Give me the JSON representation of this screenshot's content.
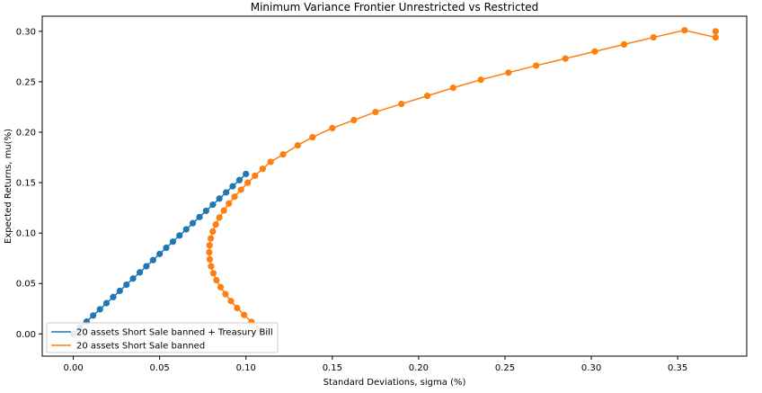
{
  "chart_data": {
    "type": "line",
    "title": "Minimum Variance Frontier Unrestricted vs Restricted",
    "xlabel": "Standard Deviations, sigma (%)",
    "ylabel": "Expected Returns, mu(%)",
    "xlim": [
      -0.018,
      0.39
    ],
    "ylim": [
      -0.022,
      0.315
    ],
    "xticks": [
      "0.00",
      "0.05",
      "0.10",
      "0.15",
      "0.20",
      "0.25",
      "0.30",
      "0.35"
    ],
    "yticks": [
      "0.00",
      "0.05",
      "0.10",
      "0.15",
      "0.20",
      "0.25",
      "0.30"
    ],
    "grid": false,
    "legend": "bottom-left",
    "colors": {
      "series0": "#1f77b4",
      "series1": "#ff7f0e"
    },
    "series": [
      {
        "name": "20 assets Short Sale banned + Treasury Bill",
        "color": "#1f77b4",
        "x": [
          0.0,
          0.0038,
          0.0077,
          0.0115,
          0.0154,
          0.0192,
          0.0231,
          0.0269,
          0.0308,
          0.0346,
          0.0385,
          0.0423,
          0.0462,
          0.05,
          0.0538,
          0.0577,
          0.0615,
          0.0654,
          0.0692,
          0.0731,
          0.0769,
          0.0808,
          0.0846,
          0.0885,
          0.0923,
          0.0962,
          0.1
        ],
        "y": [
          0.0,
          0.0061,
          0.0122,
          0.0183,
          0.0244,
          0.0305,
          0.0366,
          0.0427,
          0.0488,
          0.0549,
          0.061,
          0.0671,
          0.0732,
          0.0793,
          0.0854,
          0.0915,
          0.0976,
          0.1037,
          0.1098,
          0.1159,
          0.122,
          0.1281,
          0.1342,
          0.1403,
          0.1464,
          0.1525,
          0.1586
        ]
      },
      {
        "name": "20 assets Short Sale banned",
        "color": "#ff7f0e",
        "x": [
          0.1078,
          0.1032,
          0.0989,
          0.0949,
          0.0913,
          0.0881,
          0.0853,
          0.0829,
          0.0811,
          0.0798,
          0.079,
          0.0787,
          0.0789,
          0.0796,
          0.0808,
          0.0825,
          0.0846,
          0.0872,
          0.0901,
          0.0934,
          0.0971,
          0.101,
          0.1052,
          0.1097,
          0.1143,
          0.1215,
          0.13,
          0.1385,
          0.15,
          0.1625,
          0.175,
          0.19,
          0.205,
          0.22,
          0.236,
          0.252,
          0.268,
          0.285,
          0.302,
          0.319,
          0.336,
          0.354,
          0.372,
          0.372
        ],
        "y": [
          0.005,
          0.0119,
          0.0188,
          0.0257,
          0.0326,
          0.0395,
          0.0464,
          0.0533,
          0.0602,
          0.0671,
          0.074,
          0.0809,
          0.0878,
          0.0947,
          0.1016,
          0.1085,
          0.1154,
          0.1223,
          0.1292,
          0.1361,
          0.143,
          0.1499,
          0.1568,
          0.1637,
          0.1706,
          0.178,
          0.187,
          0.195,
          0.204,
          0.212,
          0.22,
          0.228,
          0.236,
          0.244,
          0.252,
          0.259,
          0.266,
          0.273,
          0.28,
          0.287,
          0.294,
          0.301,
          0.294,
          0.3
        ]
      }
    ]
  }
}
